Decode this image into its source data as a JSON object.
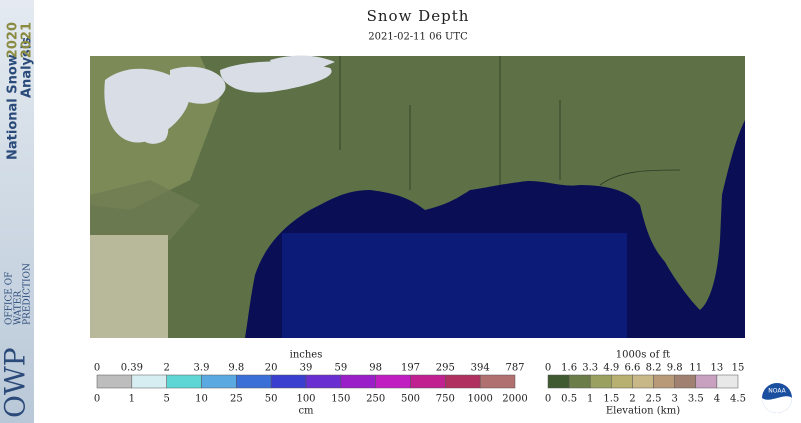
{
  "title": "Snow Depth",
  "subtitle": "2021-02-11 06 UTC",
  "sidebar": {
    "product_line1": "National Snow",
    "product_line2": "Analysis",
    "year1": "2020",
    "year2": "2021",
    "office": [
      "OFFICE OF",
      "WATER",
      "PREDICTION"
    ],
    "logo": "OWP"
  },
  "snow_legend": {
    "top_unit": "inches",
    "top_labels": [
      0,
      0.39,
      2,
      3.9,
      9.8,
      20,
      39,
      59,
      98,
      197,
      295,
      394,
      787
    ],
    "bottom_labels": [
      0,
      1,
      5,
      10,
      25,
      50,
      100,
      150,
      250,
      500,
      750,
      1000,
      2000
    ],
    "bottom_unit": "cm"
  },
  "elevation_legend": {
    "top_unit": "1000s of ft",
    "top_labels": [
      0,
      1.6,
      3.3,
      4.9,
      6.6,
      8.2,
      9.8,
      11,
      13,
      15
    ],
    "bottom_labels": [
      0,
      0.5,
      1,
      1.5,
      2,
      2.5,
      3,
      3.5,
      4,
      4.5
    ],
    "bottom_unit": "Elevation (km)"
  },
  "noaa": "NOAA"
}
